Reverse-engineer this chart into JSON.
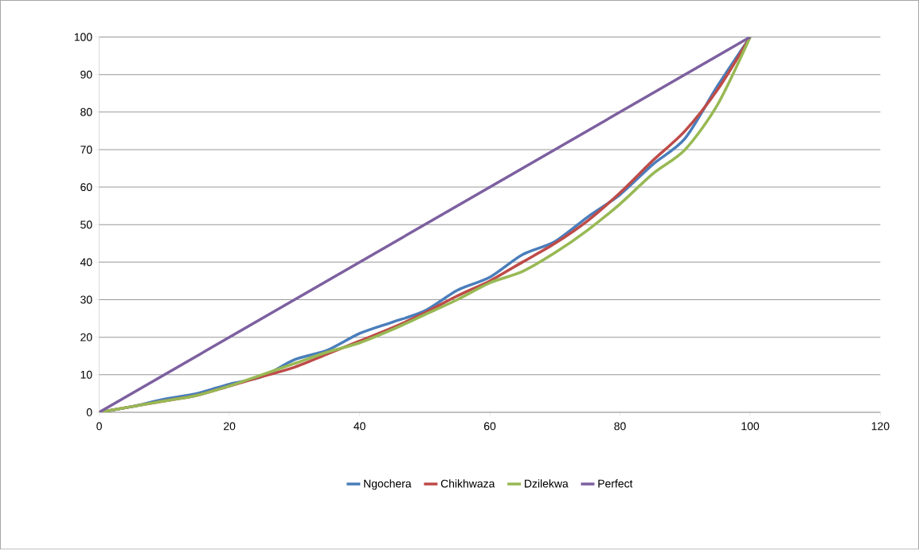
{
  "chart_data": {
    "type": "line",
    "xlim": [
      0,
      120
    ],
    "ylim": [
      0,
      100
    ],
    "xticks": [
      0,
      20,
      40,
      60,
      80,
      100,
      120
    ],
    "yticks": [
      0,
      10,
      20,
      30,
      40,
      50,
      60,
      70,
      80,
      90,
      100
    ],
    "grid": "y",
    "legend": "bottom",
    "marker": "none",
    "line_style": "solid",
    "series": [
      {
        "name": "Ngochera",
        "color": "#4a7ebb",
        "x": [
          0,
          5,
          10,
          15,
          20,
          25,
          30,
          35,
          40,
          45,
          50,
          55,
          60,
          65,
          70,
          75,
          80,
          85,
          90,
          95,
          100
        ],
        "values": [
          0,
          1.5,
          3.5,
          5,
          7.5,
          9.5,
          14,
          16.5,
          21,
          24,
          27,
          32.5,
          36,
          42,
          45.5,
          52,
          58,
          66,
          73,
          87,
          100
        ]
      },
      {
        "name": "Chikhwaza",
        "color": "#be4b48",
        "x": [
          0,
          5,
          10,
          15,
          20,
          25,
          30,
          35,
          40,
          45,
          50,
          55,
          60,
          65,
          70,
          75,
          80,
          85,
          90,
          95,
          100
        ],
        "values": [
          0,
          1.5,
          3,
          4.5,
          7,
          9.5,
          12,
          15.5,
          19,
          22.5,
          26.5,
          31,
          35,
          40,
          45,
          51,
          58.5,
          67,
          75,
          86,
          100
        ]
      },
      {
        "name": "Dzilekwa",
        "color": "#98b954",
        "x": [
          0,
          5,
          10,
          15,
          20,
          25,
          30,
          35,
          40,
          45,
          50,
          55,
          60,
          65,
          70,
          75,
          80,
          85,
          90,
          95,
          100
        ],
        "values": [
          0,
          1.5,
          3,
          4.5,
          7,
          10,
          13,
          16,
          18.5,
          22,
          26,
          30,
          34.5,
          37.5,
          42.5,
          48.5,
          55.5,
          63.5,
          70,
          82,
          100
        ]
      },
      {
        "name": "Perfect",
        "color": "#7d60a0",
        "x": [
          0,
          100
        ],
        "values": [
          0,
          100
        ]
      }
    ]
  }
}
